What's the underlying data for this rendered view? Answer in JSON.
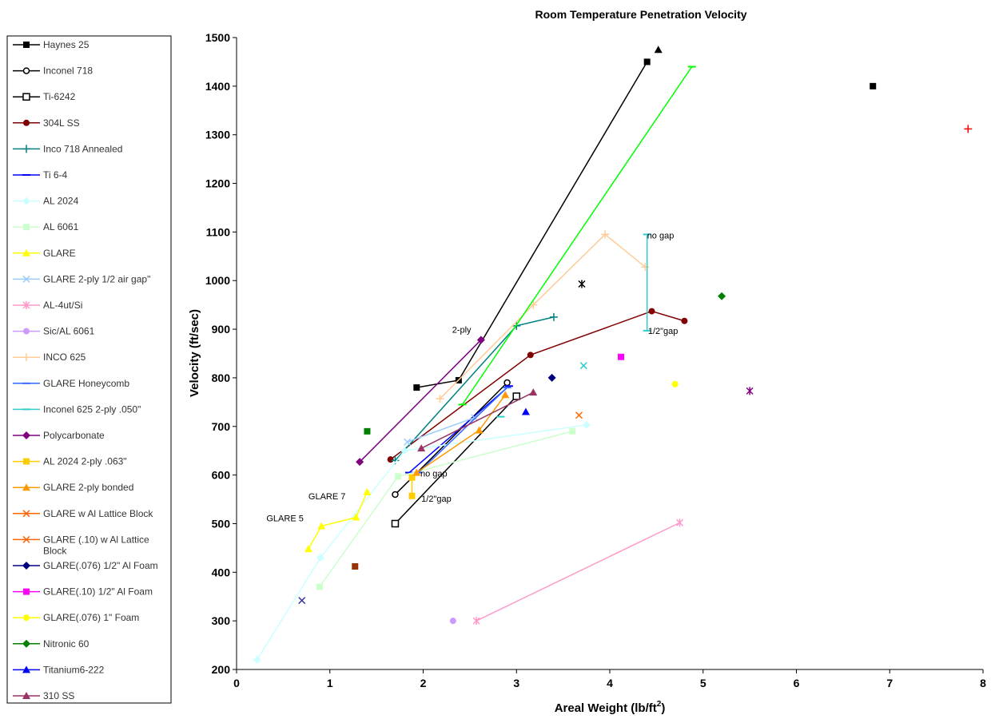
{
  "chart_data": {
    "type": "scatter",
    "title": "Room Temperature Penetration Velocity",
    "xlabel_main": "Areal Weight (lb/ft",
    "xlabel_sup": "2",
    "xlabel_end": ")",
    "ylabel": "Velocity (ft/sec)",
    "xlim": [
      0,
      8
    ],
    "ylim": [
      200,
      1500
    ],
    "x_ticks": [
      0,
      1,
      2,
      3,
      4,
      5,
      6,
      7,
      8
    ],
    "y_ticks": [
      200,
      300,
      400,
      500,
      600,
      700,
      800,
      900,
      1000,
      1100,
      1200,
      1300,
      1400,
      1500
    ],
    "legend_position": "left",
    "series": [
      {
        "name": "Haynes 25",
        "color": "#000000",
        "marker": "square",
        "points": [
          [
            1.93,
            780
          ],
          [
            2.38,
            795
          ],
          [
            4.4,
            1450
          ]
        ]
      },
      {
        "name": "Inconel 718",
        "color": "#000000",
        "marker": "circle-open",
        "points": [
          [
            1.7,
            560
          ],
          [
            2.9,
            790
          ]
        ]
      },
      {
        "name": "Ti-6242",
        "color": "#000000",
        "marker": "square-open",
        "points": [
          [
            1.7,
            500
          ],
          [
            3.0,
            762
          ]
        ]
      },
      {
        "name": "304L SS",
        "color": "#800000",
        "marker": "circle",
        "points": [
          [
            1.65,
            632
          ],
          [
            3.15,
            847
          ],
          [
            4.45,
            937
          ],
          [
            4.8,
            917
          ]
        ]
      },
      {
        "name": "Inco 718 Annealed",
        "color": "#008080",
        "marker": "plus",
        "points": [
          [
            1.7,
            630
          ],
          [
            3.0,
            907
          ],
          [
            3.4,
            925
          ]
        ]
      },
      {
        "name": "Ti 6-4",
        "color": "#0000ff",
        "marker": "dash",
        "points": [
          [
            1.85,
            605
          ],
          [
            2.92,
            783
          ]
        ]
      },
      {
        "name": "AL 2024",
        "color": "#ccffff",
        "marker": "diamond",
        "points": [
          [
            0.22,
            220
          ],
          [
            0.9,
            430
          ],
          [
            1.8,
            650
          ],
          [
            3.75,
            703
          ]
        ]
      },
      {
        "name": "AL 6061",
        "color": "#ccffcc",
        "marker": "square",
        "points": [
          [
            0.89,
            370
          ],
          [
            1.73,
            597
          ],
          [
            3.6,
            690
          ]
        ]
      },
      {
        "name": "GLARE",
        "color": "#ffff00",
        "marker": "triangle",
        "points": [
          [
            0.77,
            448
          ],
          [
            0.91,
            495
          ],
          [
            1.28,
            513
          ],
          [
            1.4,
            565
          ]
        ]
      },
      {
        "name": "GLARE 2-ply 1/2 air gap\"",
        "color": "#99ccff",
        "marker": "x",
        "points": [
          [
            1.83,
            668
          ],
          [
            2.55,
            718
          ]
        ]
      },
      {
        "name": "AL-4ut/Si",
        "color": "#ff99cc",
        "marker": "star",
        "points": [
          [
            2.57,
            300
          ],
          [
            4.75,
            502
          ]
        ]
      },
      {
        "name": "Sic/AL 6061",
        "color": "#cc99ff",
        "marker": "circle",
        "points": [
          [
            2.32,
            300
          ]
        ]
      },
      {
        "name": "INCO 625",
        "color": "#ffcc99",
        "marker": "plus",
        "points": [
          [
            2.18,
            757
          ],
          [
            3.18,
            950
          ],
          [
            3.95,
            1095
          ],
          [
            4.38,
            1028
          ]
        ]
      },
      {
        "name": "GLARE Honeycomb",
        "color": "#3366ff",
        "marker": "dash",
        "points": [
          [
            1.95,
            605
          ],
          [
            2.9,
            780
          ]
        ]
      },
      {
        "name": "Inconel 625 2-ply .050\"",
        "color": "#33cccc",
        "marker": "dash",
        "points": [
          [
            4.4,
            1095
          ],
          [
            4.4,
            897
          ]
        ]
      },
      {
        "name": "Polycarbonate",
        "color": "#800080",
        "marker": "diamond",
        "points": [
          [
            1.32,
            627
          ],
          [
            2.62,
            878
          ]
        ]
      },
      {
        "name": "AL 2024 2-ply .063\"",
        "color": "#ffcc00",
        "marker": "square",
        "points": [
          [
            1.88,
            557
          ],
          [
            1.88,
            595
          ]
        ]
      },
      {
        "name": "GLARE 2-ply bonded",
        "color": "#ff9900",
        "marker": "triangle",
        "points": [
          [
            1.93,
            605
          ],
          [
            2.6,
            692
          ],
          [
            2.88,
            765
          ]
        ]
      },
      {
        "name": "GLARE w Al Lattice Block",
        "color": "#ff6600",
        "marker": "x",
        "points": [
          [
            3.67,
            723
          ]
        ]
      },
      {
        "name": "GLARE (.10) w Al Lattice Block",
        "color": "#ff6600",
        "marker": "x",
        "points": []
      },
      {
        "name": "GLARE(.076) 1/2\" Al Foam",
        "color": "#000080",
        "marker": "diamond",
        "points": [
          [
            3.38,
            800
          ]
        ]
      },
      {
        "name": "GLARE(.10) 1/2\" Al Foam",
        "color": "#ff00ff",
        "marker": "square",
        "points": [
          [
            4.12,
            843
          ]
        ]
      },
      {
        "name": "GLARE(.076) 1\" Foam",
        "color": "#ffff00",
        "marker": "circle",
        "points": [
          [
            4.7,
            787
          ]
        ]
      },
      {
        "name": "Nitronic 60",
        "color": "#008000",
        "marker": "diamond",
        "points": [
          [
            5.2,
            968
          ]
        ]
      },
      {
        "name": "Titanium6-222",
        "color": "#0000ff",
        "marker": "triangle",
        "points": [
          [
            3.1,
            730
          ]
        ]
      },
      {
        "name": "310 SS",
        "color": "#993366",
        "marker": "triangle",
        "points": [
          [
            1.98,
            655
          ],
          [
            3.18,
            770
          ]
        ]
      }
    ],
    "unlisted_marks": [
      {
        "color": "#000000",
        "marker": "triangle",
        "points": [
          [
            4.52,
            1475
          ]
        ]
      },
      {
        "color": "#00ff00",
        "marker": "dash",
        "points": [
          [
            2.42,
            745
          ],
          [
            4.88,
            1440
          ]
        ]
      },
      {
        "color": "#000000",
        "marker": "square",
        "points": [
          [
            6.82,
            1400
          ]
        ]
      },
      {
        "color": "#ff0000",
        "marker": "plus",
        "points": [
          [
            7.84,
            1312
          ]
        ]
      },
      {
        "color": "#000000",
        "marker": "star",
        "points": [
          [
            3.7,
            993
          ]
        ]
      },
      {
        "color": "#800080",
        "marker": "star",
        "points": [
          [
            5.5,
            773
          ]
        ]
      },
      {
        "color": "#33cccc",
        "marker": "x",
        "points": [
          [
            3.72,
            825
          ]
        ]
      },
      {
        "color": "#008000",
        "marker": "square",
        "points": [
          [
            1.4,
            690
          ]
        ]
      },
      {
        "color": "#993300",
        "marker": "square",
        "points": [
          [
            1.27,
            412
          ]
        ]
      },
      {
        "color": "#333399",
        "marker": "x",
        "points": [
          [
            0.7,
            342
          ]
        ]
      },
      {
        "color": "#33cccc",
        "marker": "dash",
        "points": [
          [
            2.83,
            720
          ]
        ]
      }
    ],
    "annotations": [
      {
        "text": "2-ply",
        "x": 2.31,
        "y": 893
      },
      {
        "text": "GLARE 7",
        "x": 0.77,
        "y": 550
      },
      {
        "text": "GLARE 5",
        "x": 0.32,
        "y": 505
      },
      {
        "text": "no gap",
        "x": 1.97,
        "y": 597
      },
      {
        "text": "1/2\"gap",
        "x": 1.98,
        "y": 545
      },
      {
        "text": "no gap",
        "x": 4.4,
        "y": 1087
      },
      {
        "text": "1/2\"gap",
        "x": 4.41,
        "y": 890
      }
    ]
  }
}
